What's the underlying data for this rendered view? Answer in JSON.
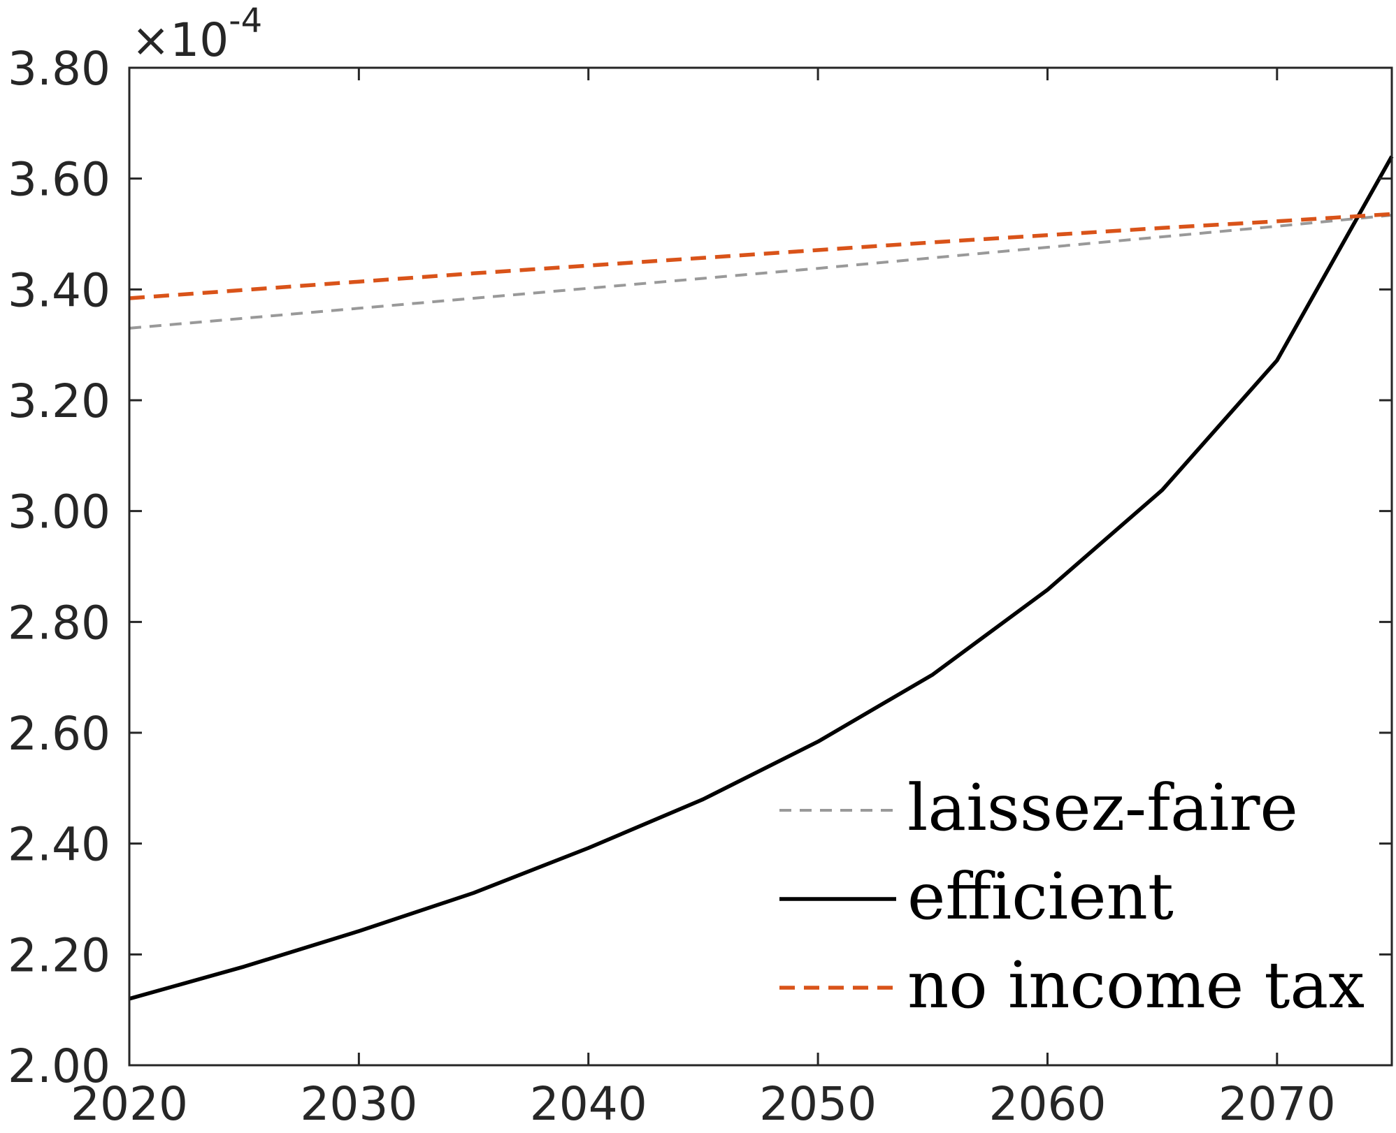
{
  "chart_data": {
    "type": "line",
    "title": "",
    "xlabel": "",
    "ylabel": "",
    "xlim": [
      2020,
      2075
    ],
    "ylim": [
      2.0,
      3.8
    ],
    "x_ticks": [
      "2020",
      "2030",
      "2040",
      "2050",
      "2060",
      "2070"
    ],
    "y_ticks": [
      "2.00",
      "2.20",
      "2.40",
      "2.60",
      "2.80",
      "3.00",
      "3.20",
      "3.40",
      "3.60",
      "3.80"
    ],
    "y_exponent": {
      "prefix": "×10",
      "power": "-4"
    },
    "grid": false,
    "legend_position": "bottom-right",
    "x": [
      2020,
      2025,
      2030,
      2035,
      2040,
      2045,
      2050,
      2055,
      2060,
      2065,
      2070,
      2075
    ],
    "series": [
      {
        "name": "laissez-faire",
        "color": "#999999",
        "style": "dashed",
        "values": [
          3.33,
          3.348,
          3.366,
          3.384,
          3.402,
          3.42,
          3.438,
          3.457,
          3.476,
          3.495,
          3.514,
          3.534
        ]
      },
      {
        "name": "efficient",
        "color": "#000000",
        "style": "solid",
        "values": [
          2.12,
          2.178,
          2.242,
          2.311,
          2.392,
          2.48,
          2.584,
          2.705,
          2.858,
          3.038,
          3.272,
          3.64
        ]
      },
      {
        "name": "no income tax",
        "color": "#d95319",
        "style": "dashed",
        "values": [
          3.384,
          3.399,
          3.414,
          3.429,
          3.443,
          3.457,
          3.471,
          3.485,
          3.498,
          3.511,
          3.523,
          3.536
        ]
      }
    ]
  }
}
